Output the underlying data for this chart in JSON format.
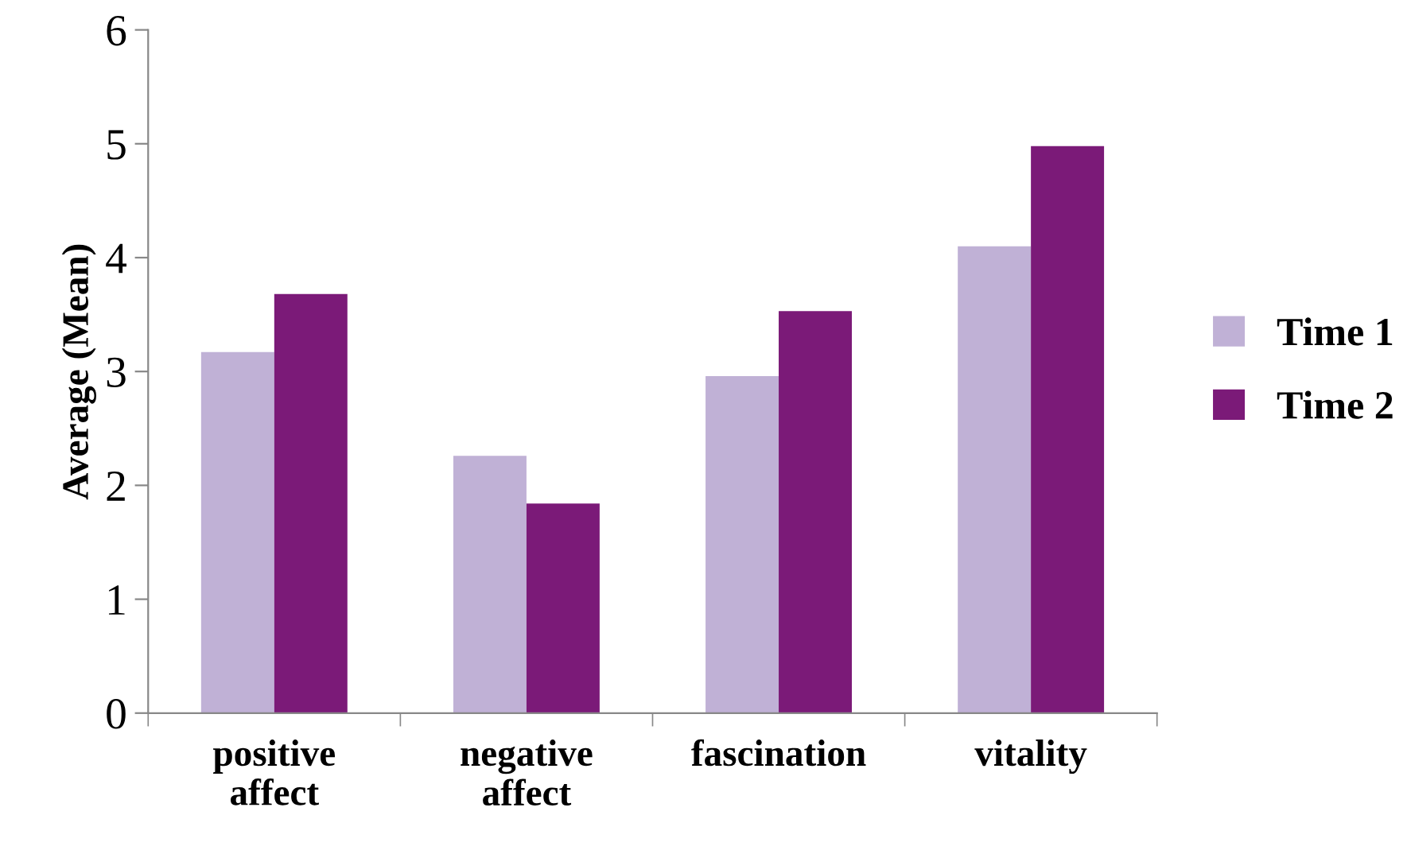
{
  "chart_data": {
    "type": "bar",
    "ylabel": "Average (Mean)",
    "categories": [
      "positive\naffect",
      "negative\naffect",
      "fascination",
      "vitality"
    ],
    "series": [
      {
        "name": "Time 1",
        "color": "#c0b1d6",
        "values": [
          3.17,
          2.26,
          2.96,
          4.1
        ]
      },
      {
        "name": "Time 2",
        "color": "#7b1a78",
        "values": [
          3.68,
          1.84,
          3.53,
          4.98
        ]
      }
    ],
    "ylim": [
      0,
      6
    ],
    "yticks": [
      0,
      1,
      2,
      3,
      4,
      5,
      6
    ],
    "grid": false,
    "legend": "right"
  }
}
